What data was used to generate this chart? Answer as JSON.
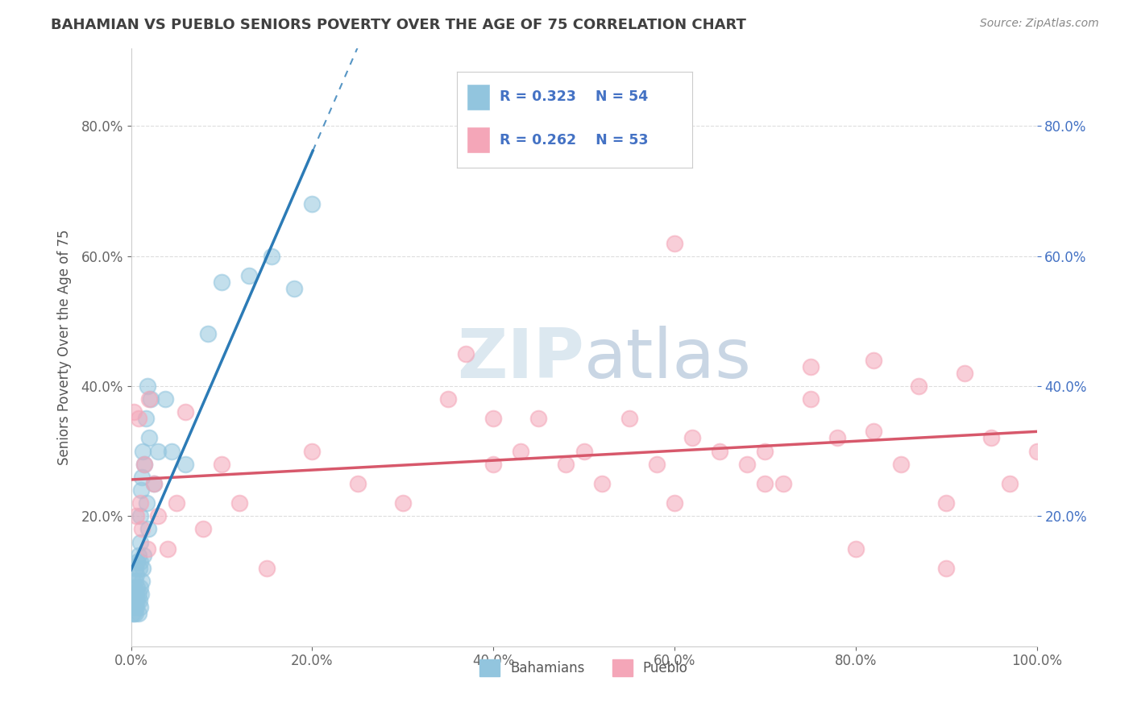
{
  "title": "BAHAMIAN VS PUEBLO SENIORS POVERTY OVER THE AGE OF 75 CORRELATION CHART",
  "source": "Source: ZipAtlas.com",
  "ylabel": "Seniors Poverty Over the Age of 75",
  "xlim": [
    0,
    1.0
  ],
  "ylim": [
    0,
    0.92
  ],
  "xtick_labels": [
    "0.0%",
    "20.0%",
    "40.0%",
    "60.0%",
    "80.0%",
    "100.0%"
  ],
  "xtick_values": [
    0.0,
    0.2,
    0.4,
    0.6,
    0.8,
    1.0
  ],
  "ytick_labels": [
    "20.0%",
    "40.0%",
    "60.0%",
    "80.0%"
  ],
  "ytick_values": [
    0.2,
    0.4,
    0.6,
    0.8
  ],
  "bahamian_R": 0.323,
  "bahamian_N": 54,
  "pueblo_R": 0.262,
  "pueblo_N": 53,
  "blue_color": "#92c5de",
  "pink_color": "#f4a6b8",
  "blue_line_color": "#2c7bb6",
  "pink_line_color": "#d7586b",
  "legend_text_color": "#4472C4",
  "watermark_color": "#dce8f0",
  "background_color": "#ffffff",
  "title_color": "#404040",
  "grid_color": "#dddddd",
  "bahamian_x": [
    0.001,
    0.001,
    0.002,
    0.002,
    0.003,
    0.003,
    0.003,
    0.004,
    0.004,
    0.005,
    0.005,
    0.005,
    0.005,
    0.006,
    0.006,
    0.006,
    0.007,
    0.007,
    0.007,
    0.008,
    0.008,
    0.008,
    0.009,
    0.009,
    0.01,
    0.01,
    0.01,
    0.01,
    0.01,
    0.011,
    0.011,
    0.012,
    0.012,
    0.013,
    0.013,
    0.014,
    0.015,
    0.016,
    0.017,
    0.018,
    0.019,
    0.02,
    0.022,
    0.025,
    0.03,
    0.038,
    0.045,
    0.06,
    0.085,
    0.1,
    0.13,
    0.155,
    0.18,
    0.2
  ],
  "bahamian_y": [
    0.05,
    0.08,
    0.06,
    0.1,
    0.05,
    0.07,
    0.09,
    0.06,
    0.08,
    0.05,
    0.07,
    0.1,
    0.12,
    0.06,
    0.08,
    0.11,
    0.07,
    0.09,
    0.13,
    0.05,
    0.08,
    0.14,
    0.07,
    0.12,
    0.06,
    0.09,
    0.13,
    0.16,
    0.2,
    0.08,
    0.24,
    0.1,
    0.26,
    0.12,
    0.3,
    0.14,
    0.28,
    0.35,
    0.22,
    0.4,
    0.18,
    0.32,
    0.38,
    0.25,
    0.3,
    0.38,
    0.3,
    0.28,
    0.48,
    0.56,
    0.57,
    0.6,
    0.55,
    0.68
  ],
  "pueblo_x": [
    0.003,
    0.006,
    0.008,
    0.01,
    0.012,
    0.015,
    0.018,
    0.02,
    0.025,
    0.03,
    0.04,
    0.05,
    0.06,
    0.08,
    0.1,
    0.12,
    0.15,
    0.2,
    0.25,
    0.3,
    0.35,
    0.37,
    0.4,
    0.43,
    0.45,
    0.48,
    0.5,
    0.52,
    0.55,
    0.58,
    0.6,
    0.62,
    0.65,
    0.68,
    0.7,
    0.72,
    0.75,
    0.78,
    0.8,
    0.82,
    0.85,
    0.87,
    0.9,
    0.92,
    0.95,
    0.97,
    1.0,
    0.4,
    0.6,
    0.7,
    0.75,
    0.82,
    0.9
  ],
  "pueblo_y": [
    0.36,
    0.2,
    0.35,
    0.22,
    0.18,
    0.28,
    0.15,
    0.38,
    0.25,
    0.2,
    0.15,
    0.22,
    0.36,
    0.18,
    0.28,
    0.22,
    0.12,
    0.3,
    0.25,
    0.22,
    0.38,
    0.45,
    0.28,
    0.3,
    0.35,
    0.28,
    0.3,
    0.25,
    0.35,
    0.28,
    0.62,
    0.32,
    0.3,
    0.28,
    0.3,
    0.25,
    0.43,
    0.32,
    0.15,
    0.44,
    0.28,
    0.4,
    0.22,
    0.42,
    0.32,
    0.25,
    0.3,
    0.35,
    0.22,
    0.25,
    0.38,
    0.33,
    0.12
  ]
}
